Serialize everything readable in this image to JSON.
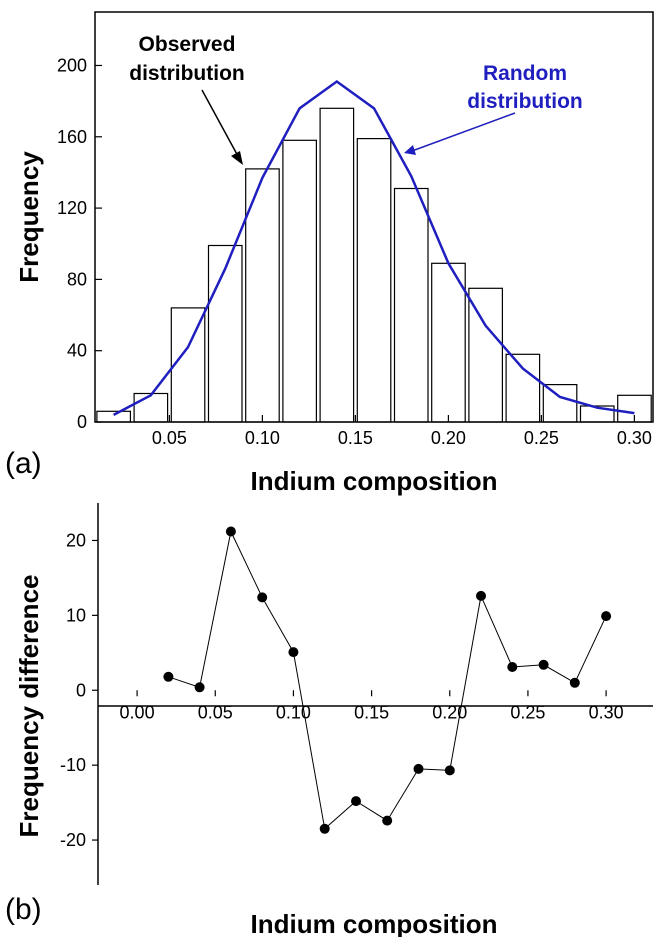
{
  "chart_data": [
    {
      "type": "bar",
      "panel_label": "(a)",
      "xlabel": "Indium composition",
      "ylabel": "Frequency",
      "xlim": [
        0.01,
        0.31
      ],
      "ylim": [
        0,
        230
      ],
      "x_ticks": [
        "0.05",
        "0.10",
        "0.15",
        "0.20",
        "0.25",
        "0.30"
      ],
      "y_ticks": [
        "0",
        "40",
        "80",
        "120",
        "160",
        "200"
      ],
      "grid": false,
      "bar_width": 0.018,
      "bars": {
        "name": "Observed distribution",
        "x": [
          0.02,
          0.04,
          0.06,
          0.08,
          0.1,
          0.12,
          0.14,
          0.16,
          0.18,
          0.2,
          0.22,
          0.24,
          0.26,
          0.28,
          0.3
        ],
        "values": [
          6,
          16,
          64,
          99,
          142,
          158,
          176,
          159,
          131,
          89,
          75,
          38,
          21,
          9,
          15
        ]
      },
      "line": {
        "name": "Random distribution",
        "color": "#1f1fbf",
        "x": [
          0.02,
          0.04,
          0.06,
          0.08,
          0.1,
          0.12,
          0.14,
          0.16,
          0.18,
          0.2,
          0.22,
          0.24,
          0.26,
          0.28,
          0.3
        ],
        "values": [
          4,
          15,
          42,
          86,
          137,
          176,
          191,
          176,
          138,
          89,
          54,
          30,
          14,
          8,
          5
        ]
      },
      "annotations": [
        {
          "lines": [
            "Observed",
            "distribution"
          ],
          "color": "#000000",
          "points_to": "bars"
        },
        {
          "lines": [
            "Random",
            "distribution"
          ],
          "color": "#1f1fbf",
          "points_to": "line"
        }
      ]
    },
    {
      "type": "scatter",
      "panel_label": "(b)",
      "xlabel": "Indium composition",
      "ylabel": "Frequency difference",
      "xlim": [
        -0.025,
        0.33
      ],
      "ylim": [
        -26,
        25
      ],
      "x_ticks": [
        "0.00",
        "0.05",
        "0.10",
        "0.15",
        "0.20",
        "0.25",
        "0.30"
      ],
      "y_ticks": [
        "-20",
        "-10",
        "0",
        "10",
        "20"
      ],
      "grid": false,
      "series": [
        {
          "x": [
            0.02,
            0.04,
            0.06,
            0.08,
            0.1,
            0.12,
            0.14,
            0.16,
            0.18,
            0.2,
            0.22,
            0.24,
            0.26,
            0.28,
            0.3
          ],
          "values": [
            1.8,
            0.4,
            21.2,
            12.4,
            5.1,
            -18.5,
            -14.8,
            -17.4,
            -10.5,
            -10.7,
            12.6,
            3.1,
            3.4,
            1.0,
            9.9
          ]
        }
      ]
    }
  ]
}
